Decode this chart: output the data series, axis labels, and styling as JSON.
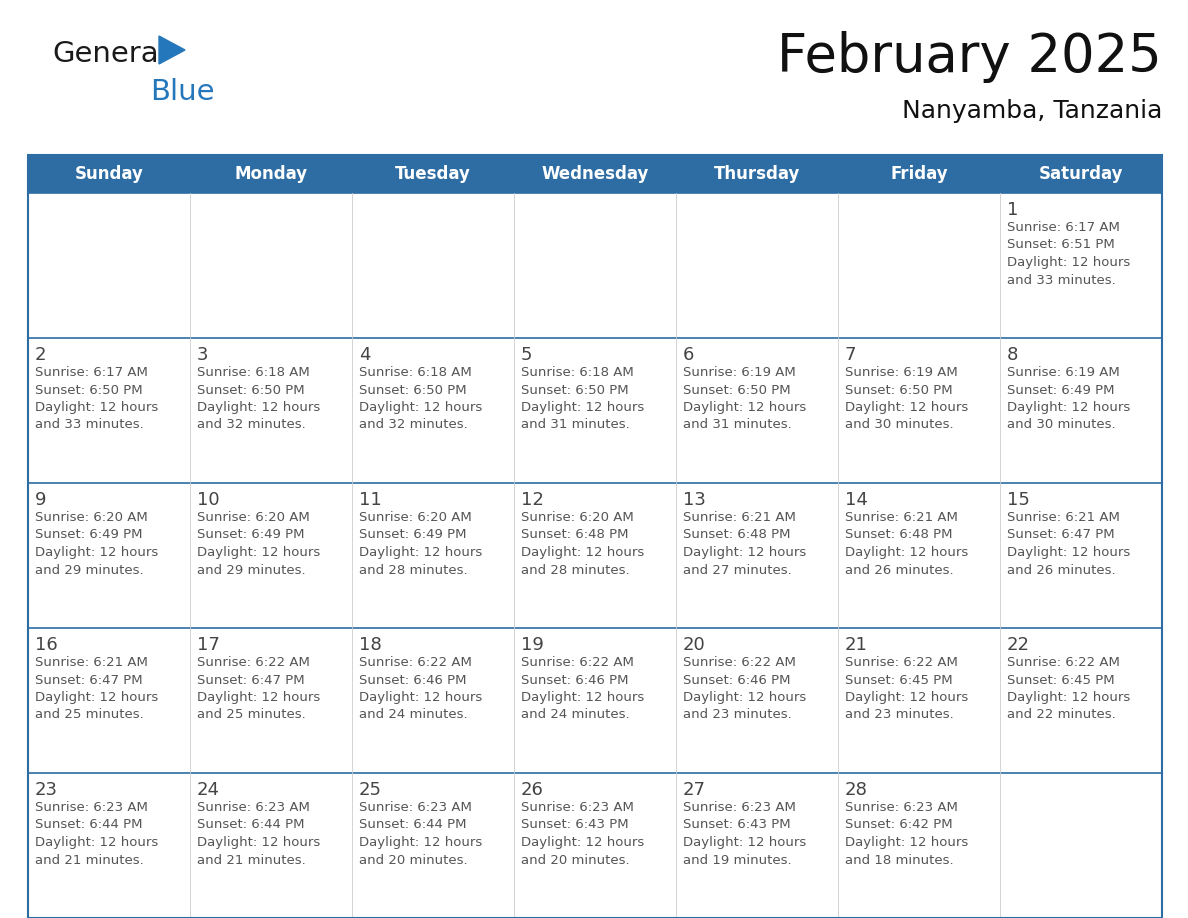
{
  "title": "February 2025",
  "subtitle": "Nanyamba, Tanzania",
  "header_bg_color": "#2E6DA4",
  "header_text_color": "#FFFFFF",
  "days_of_week": [
    "Sunday",
    "Monday",
    "Tuesday",
    "Wednesday",
    "Thursday",
    "Friday",
    "Saturday"
  ],
  "cell_border_color": "#2E6DA4",
  "text_color": "#555555",
  "day_num_color": "#444444",
  "calendar_data": [
    [
      {
        "day": null,
        "sunrise": null,
        "sunset": null,
        "daylight": null
      },
      {
        "day": null,
        "sunrise": null,
        "sunset": null,
        "daylight": null
      },
      {
        "day": null,
        "sunrise": null,
        "sunset": null,
        "daylight": null
      },
      {
        "day": null,
        "sunrise": null,
        "sunset": null,
        "daylight": null
      },
      {
        "day": null,
        "sunrise": null,
        "sunset": null,
        "daylight": null
      },
      {
        "day": null,
        "sunrise": null,
        "sunset": null,
        "daylight": null
      },
      {
        "day": 1,
        "sunrise": "6:17 AM",
        "sunset": "6:51 PM",
        "daylight": "12 hours\nand 33 minutes."
      }
    ],
    [
      {
        "day": 2,
        "sunrise": "6:17 AM",
        "sunset": "6:50 PM",
        "daylight": "12 hours\nand 33 minutes."
      },
      {
        "day": 3,
        "sunrise": "6:18 AM",
        "sunset": "6:50 PM",
        "daylight": "12 hours\nand 32 minutes."
      },
      {
        "day": 4,
        "sunrise": "6:18 AM",
        "sunset": "6:50 PM",
        "daylight": "12 hours\nand 32 minutes."
      },
      {
        "day": 5,
        "sunrise": "6:18 AM",
        "sunset": "6:50 PM",
        "daylight": "12 hours\nand 31 minutes."
      },
      {
        "day": 6,
        "sunrise": "6:19 AM",
        "sunset": "6:50 PM",
        "daylight": "12 hours\nand 31 minutes."
      },
      {
        "day": 7,
        "sunrise": "6:19 AM",
        "sunset": "6:50 PM",
        "daylight": "12 hours\nand 30 minutes."
      },
      {
        "day": 8,
        "sunrise": "6:19 AM",
        "sunset": "6:49 PM",
        "daylight": "12 hours\nand 30 minutes."
      }
    ],
    [
      {
        "day": 9,
        "sunrise": "6:20 AM",
        "sunset": "6:49 PM",
        "daylight": "12 hours\nand 29 minutes."
      },
      {
        "day": 10,
        "sunrise": "6:20 AM",
        "sunset": "6:49 PM",
        "daylight": "12 hours\nand 29 minutes."
      },
      {
        "day": 11,
        "sunrise": "6:20 AM",
        "sunset": "6:49 PM",
        "daylight": "12 hours\nand 28 minutes."
      },
      {
        "day": 12,
        "sunrise": "6:20 AM",
        "sunset": "6:48 PM",
        "daylight": "12 hours\nand 28 minutes."
      },
      {
        "day": 13,
        "sunrise": "6:21 AM",
        "sunset": "6:48 PM",
        "daylight": "12 hours\nand 27 minutes."
      },
      {
        "day": 14,
        "sunrise": "6:21 AM",
        "sunset": "6:48 PM",
        "daylight": "12 hours\nand 26 minutes."
      },
      {
        "day": 15,
        "sunrise": "6:21 AM",
        "sunset": "6:47 PM",
        "daylight": "12 hours\nand 26 minutes."
      }
    ],
    [
      {
        "day": 16,
        "sunrise": "6:21 AM",
        "sunset": "6:47 PM",
        "daylight": "12 hours\nand 25 minutes."
      },
      {
        "day": 17,
        "sunrise": "6:22 AM",
        "sunset": "6:47 PM",
        "daylight": "12 hours\nand 25 minutes."
      },
      {
        "day": 18,
        "sunrise": "6:22 AM",
        "sunset": "6:46 PM",
        "daylight": "12 hours\nand 24 minutes."
      },
      {
        "day": 19,
        "sunrise": "6:22 AM",
        "sunset": "6:46 PM",
        "daylight": "12 hours\nand 24 minutes."
      },
      {
        "day": 20,
        "sunrise": "6:22 AM",
        "sunset": "6:46 PM",
        "daylight": "12 hours\nand 23 minutes."
      },
      {
        "day": 21,
        "sunrise": "6:22 AM",
        "sunset": "6:45 PM",
        "daylight": "12 hours\nand 23 minutes."
      },
      {
        "day": 22,
        "sunrise": "6:22 AM",
        "sunset": "6:45 PM",
        "daylight": "12 hours\nand 22 minutes."
      }
    ],
    [
      {
        "day": 23,
        "sunrise": "6:23 AM",
        "sunset": "6:44 PM",
        "daylight": "12 hours\nand 21 minutes."
      },
      {
        "day": 24,
        "sunrise": "6:23 AM",
        "sunset": "6:44 PM",
        "daylight": "12 hours\nand 21 minutes."
      },
      {
        "day": 25,
        "sunrise": "6:23 AM",
        "sunset": "6:44 PM",
        "daylight": "12 hours\nand 20 minutes."
      },
      {
        "day": 26,
        "sunrise": "6:23 AM",
        "sunset": "6:43 PM",
        "daylight": "12 hours\nand 20 minutes."
      },
      {
        "day": 27,
        "sunrise": "6:23 AM",
        "sunset": "6:43 PM",
        "daylight": "12 hours\nand 19 minutes."
      },
      {
        "day": 28,
        "sunrise": "6:23 AM",
        "sunset": "6:42 PM",
        "daylight": "12 hours\nand 18 minutes."
      },
      {
        "day": null,
        "sunrise": null,
        "sunset": null,
        "daylight": null
      }
    ]
  ],
  "logo_text_general": "General",
  "logo_text_blue": "Blue",
  "logo_color_general": "#1a1a1a",
  "logo_color_blue": "#2577BB",
  "logo_triangle_color": "#2577BB",
  "title_fontsize": 38,
  "subtitle_fontsize": 18,
  "header_fontsize": 12,
  "day_num_fontsize": 13,
  "info_fontsize": 9.5
}
